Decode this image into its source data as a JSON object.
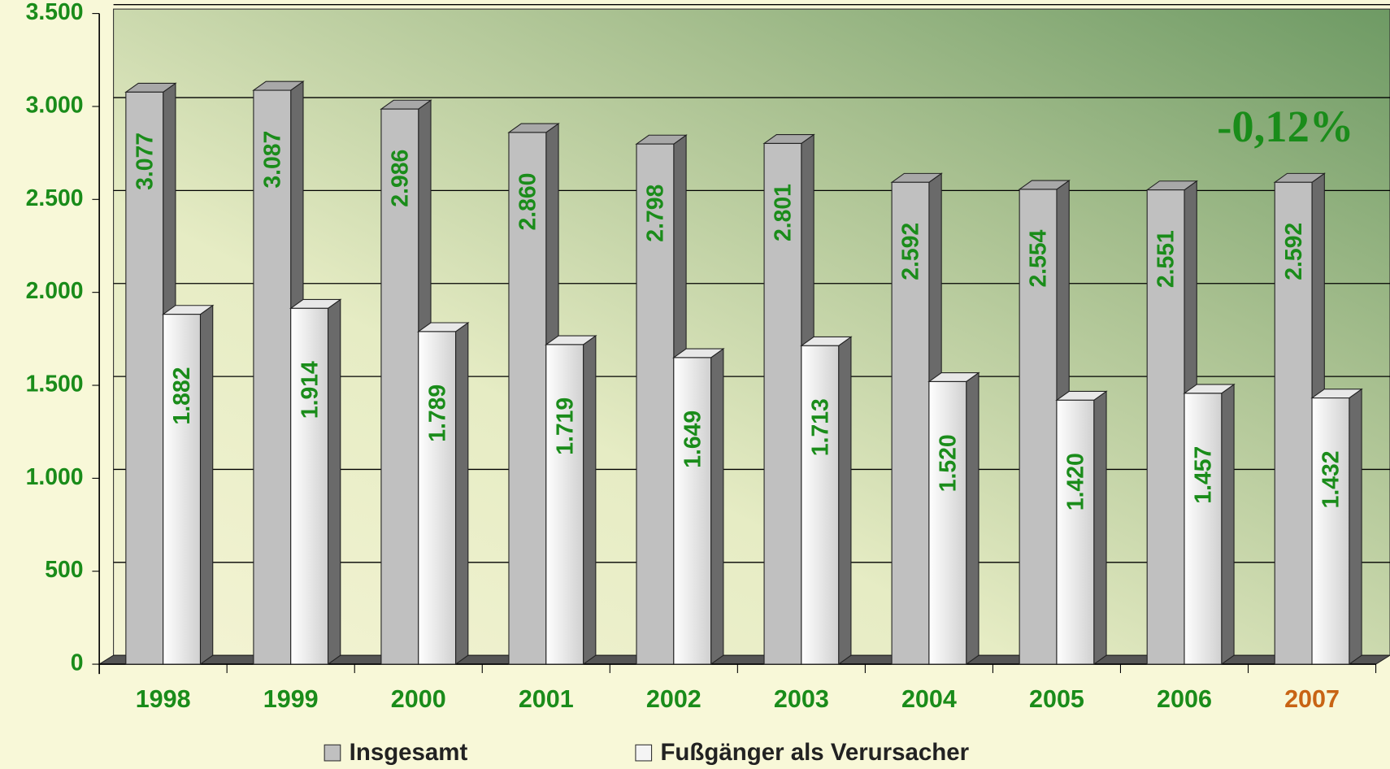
{
  "chart_data": {
    "type": "bar3d",
    "categories": [
      "1998",
      "1999",
      "2000",
      "2001",
      "2002",
      "2003",
      "2004",
      "2005",
      "2006",
      "2007"
    ],
    "category_colors": [
      "#1a8c1a",
      "#1a8c1a",
      "#1a8c1a",
      "#1a8c1a",
      "#1a8c1a",
      "#1a8c1a",
      "#1a8c1a",
      "#1a8c1a",
      "#1a8c1a",
      "#c86414"
    ],
    "series": [
      {
        "name": "Insgesamt",
        "color": "#c0c0c0",
        "values": [
          3077,
          3087,
          2986,
          2860,
          2798,
          2801,
          2592,
          2554,
          2551,
          2592
        ],
        "value_labels": [
          "3.077",
          "3.087",
          "2.986",
          "2.860",
          "2.798",
          "2.801",
          "2.592",
          "2.554",
          "2.551",
          "2.592"
        ]
      },
      {
        "name": "Fußgänger als Verursacher",
        "color": "#f4f4f4",
        "values": [
          1882,
          1914,
          1789,
          1719,
          1649,
          1713,
          1520,
          1420,
          1457,
          1432
        ],
        "value_labels": [
          "1.882",
          "1.914",
          "1.789",
          "1.719",
          "1.649",
          "1.713",
          "1.520",
          "1.420",
          "1.457",
          "1.432"
        ]
      }
    ],
    "ylim": [
      0,
      3500
    ],
    "yticks": [
      {
        "value": 0,
        "label": "0"
      },
      {
        "value": 500,
        "label": "500"
      },
      {
        "value": 1000,
        "label": "1.000"
      },
      {
        "value": 1500,
        "label": "1.500"
      },
      {
        "value": 2000,
        "label": "2.000"
      },
      {
        "value": 2500,
        "label": "2.500"
      },
      {
        "value": 3000,
        "label": "3.000"
      },
      {
        "value": 3500,
        "label": "3.500"
      }
    ],
    "grid": true,
    "annotation": "-0,12%"
  }
}
